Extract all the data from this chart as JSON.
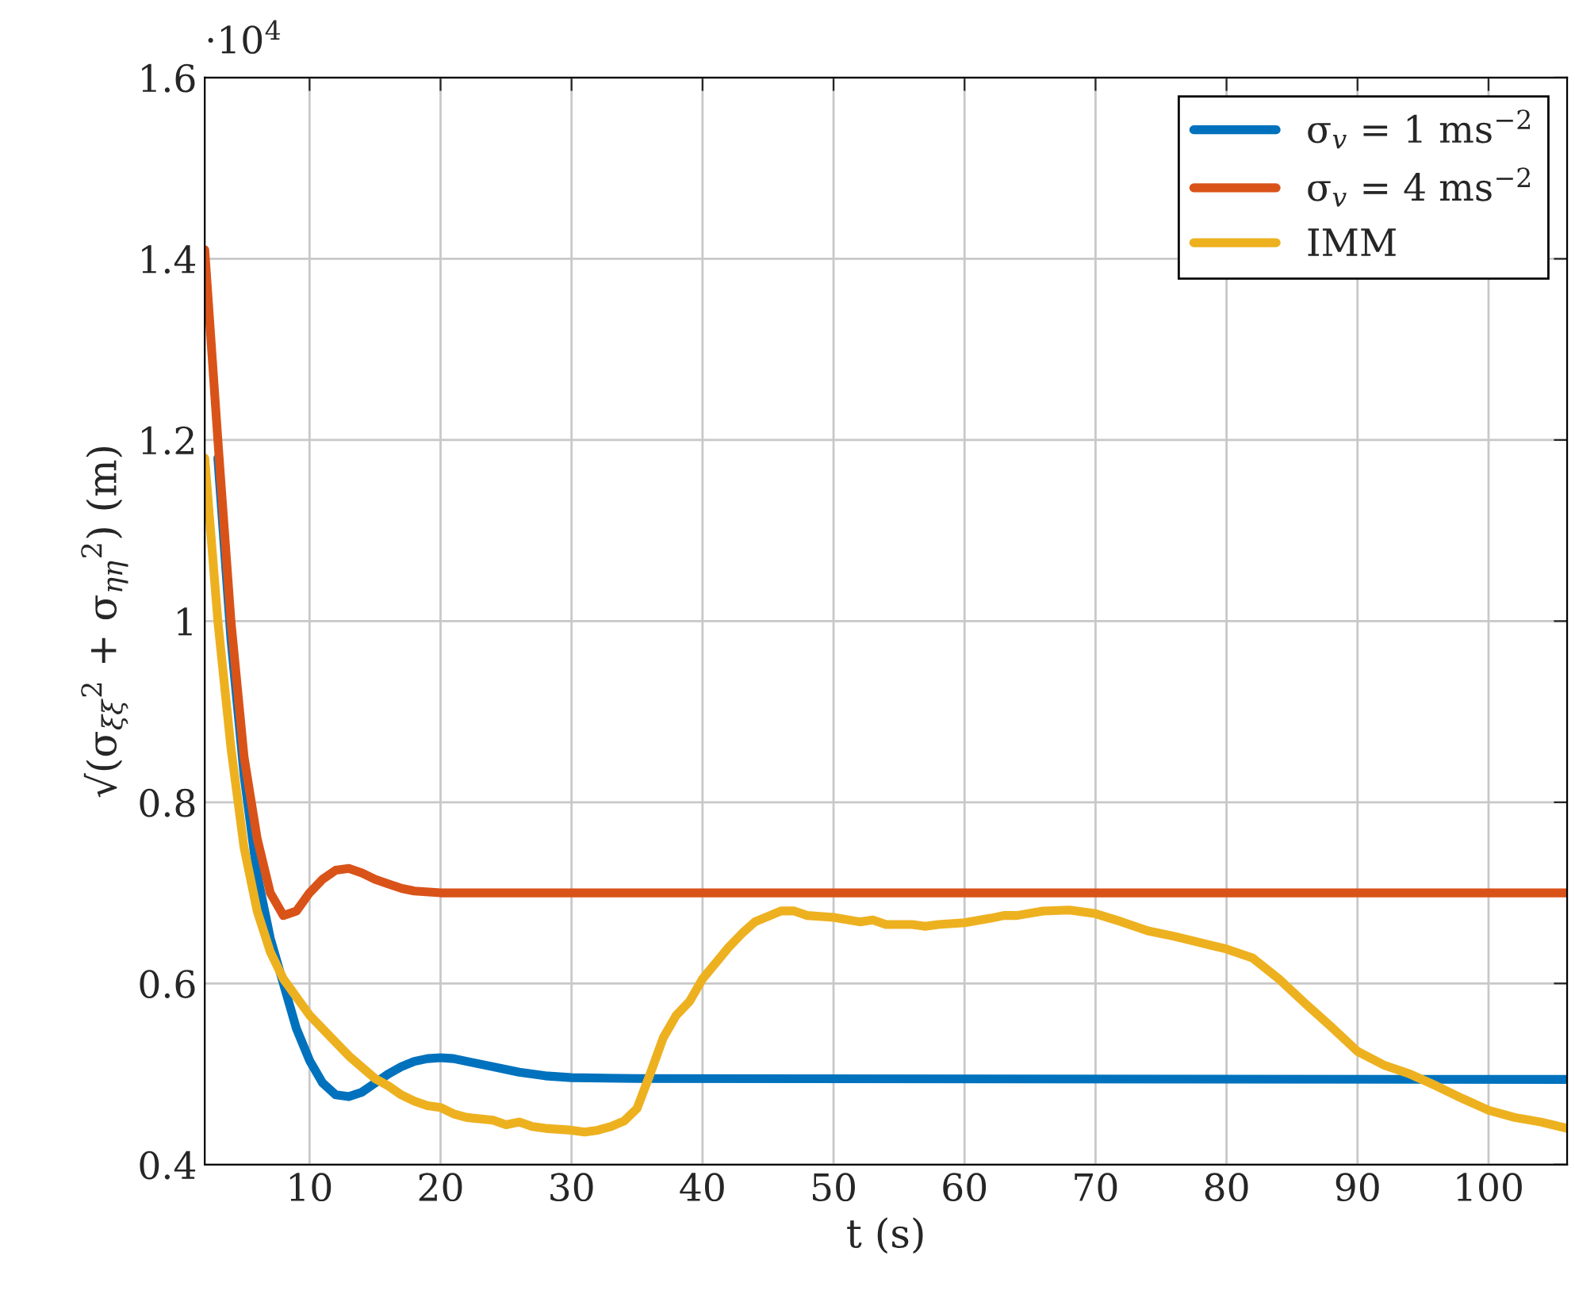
{
  "chart_data": {
    "type": "line",
    "xlabel": "t (s)",
    "ylabel": "√(σ$_{ξξ}$$^{2}$ + σ$_{ηη}$$^{2}$) (m)",
    "annotations": [
      "·10$^{4}$"
    ],
    "xlim": [
      2,
      106
    ],
    "xticks": [
      10,
      20,
      30,
      40,
      50,
      60,
      70,
      80,
      90,
      100
    ],
    "ylim": [
      0.4,
      1.6
    ],
    "yticks": [
      0.4,
      0.6,
      0.8,
      1,
      1.2,
      1.4,
      1.6
    ],
    "grid": true,
    "legend": "top right",
    "line_style": "solid",
    "marker": "none",
    "series": [
      {
        "name": "σ$_{v}$ = 1 ms$^{−2}$",
        "color": "#0072bd",
        "x": [
          3,
          4,
          5,
          6,
          7,
          8,
          9,
          10,
          11,
          12,
          13,
          14,
          15,
          16,
          17,
          18,
          19,
          20,
          21,
          22,
          24,
          26,
          28,
          30,
          35,
          106
        ],
        "values": [
          1.18,
          0.98,
          0.83,
          0.72,
          0.65,
          0.6,
          0.55,
          0.515,
          0.49,
          0.477,
          0.475,
          0.48,
          0.49,
          0.5,
          0.508,
          0.514,
          0.517,
          0.518,
          0.517,
          0.514,
          0.508,
          0.502,
          0.498,
          0.496,
          0.495,
          0.494
        ]
      },
      {
        "name": "σ$_{v}$ = 4 ms$^{−2}$",
        "color": "#d95319",
        "x": [
          2,
          3,
          4,
          5,
          6,
          7,
          8,
          9,
          10,
          11,
          12,
          13,
          14,
          15,
          16,
          17,
          18,
          20,
          106
        ],
        "values": [
          1.41,
          1.2,
          1.0,
          0.85,
          0.76,
          0.7,
          0.675,
          0.68,
          0.7,
          0.715,
          0.725,
          0.727,
          0.722,
          0.715,
          0.71,
          0.705,
          0.702,
          0.7,
          0.7
        ]
      },
      {
        "name": "IMM",
        "color": "#edb120",
        "x": [
          2,
          3,
          4,
          5,
          6,
          7,
          8,
          9,
          10,
          12,
          13,
          15,
          16,
          17,
          18,
          19,
          20,
          21,
          22,
          24,
          25,
          26,
          27,
          28,
          30,
          31,
          32,
          33,
          34,
          35,
          36,
          37,
          38,
          39,
          40,
          42,
          43,
          44,
          46,
          47,
          48,
          50,
          52,
          53,
          54,
          56,
          57,
          58,
          60,
          62,
          63,
          64,
          66,
          68,
          70,
          72,
          74,
          76,
          78,
          80,
          82,
          84,
          86,
          88,
          90,
          92,
          94,
          96,
          98,
          100,
          102,
          104,
          106
        ],
        "values": [
          1.18,
          1.0,
          0.86,
          0.75,
          0.68,
          0.635,
          0.605,
          0.585,
          0.565,
          0.535,
          0.52,
          0.495,
          0.487,
          0.477,
          0.47,
          0.465,
          0.463,
          0.456,
          0.452,
          0.449,
          0.444,
          0.447,
          0.442,
          0.44,
          0.438,
          0.436,
          0.438,
          0.442,
          0.448,
          0.462,
          0.5,
          0.54,
          0.565,
          0.58,
          0.605,
          0.64,
          0.655,
          0.668,
          0.68,
          0.68,
          0.675,
          0.673,
          0.668,
          0.67,
          0.665,
          0.665,
          0.663,
          0.665,
          0.667,
          0.672,
          0.675,
          0.675,
          0.68,
          0.681,
          0.677,
          0.668,
          0.658,
          0.652,
          0.645,
          0.638,
          0.628,
          0.605,
          0.578,
          0.552,
          0.525,
          0.51,
          0.5,
          0.487,
          0.473,
          0.46,
          0.452,
          0.447,
          0.44
        ]
      }
    ]
  }
}
